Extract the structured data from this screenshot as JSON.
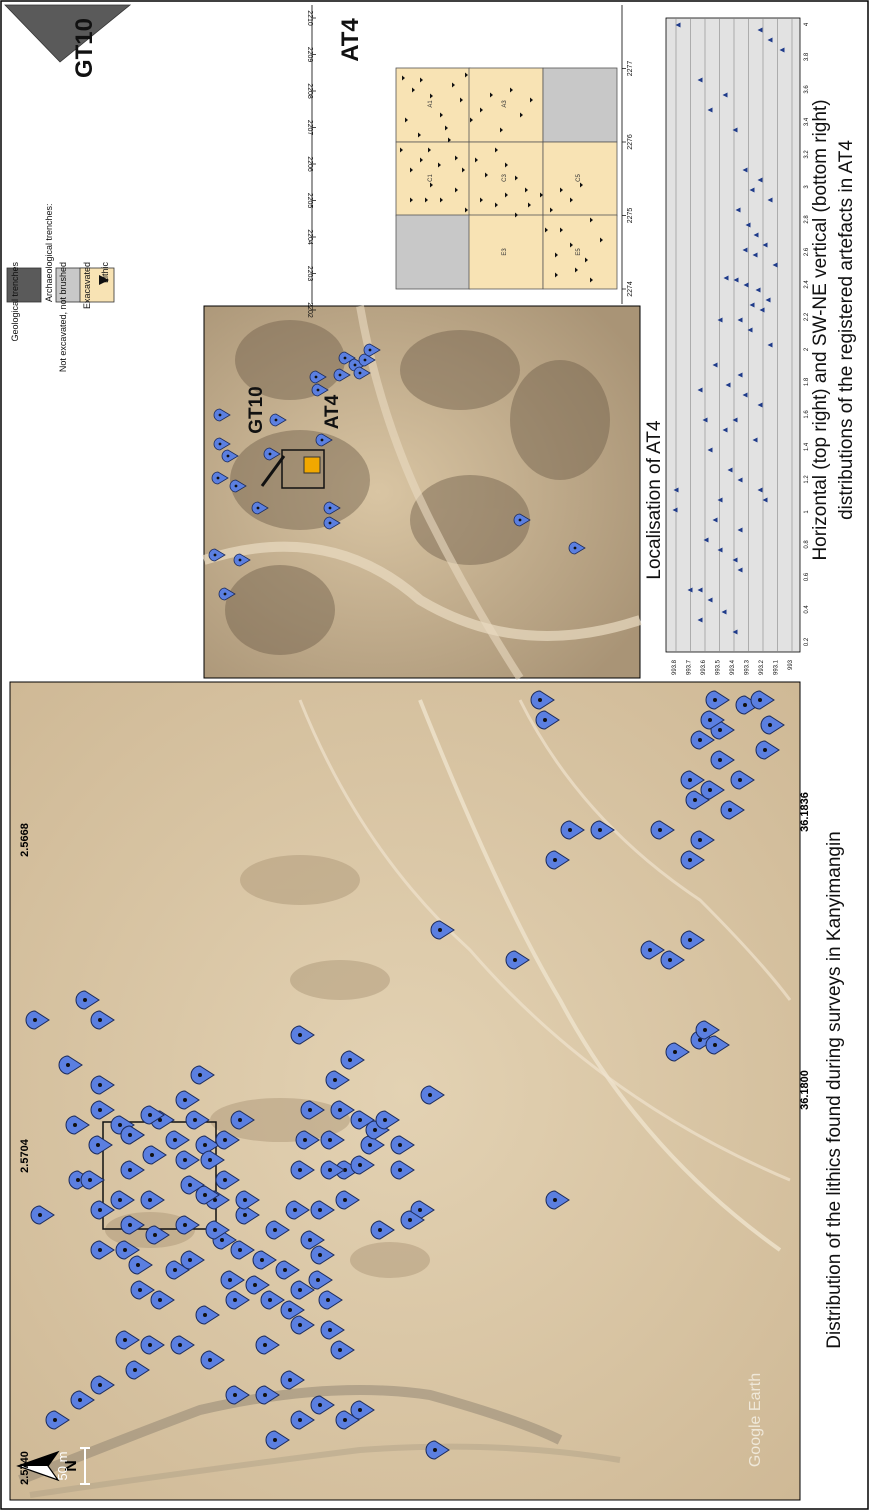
{
  "main_map": {
    "caption": "Distribution of the lithics found during surveys in Kanyimangin",
    "scale_label": "50 m",
    "north_label": "N",
    "watermark": "Google Earth",
    "lat_labels": [
      "2.5740",
      "2.5704",
      "2.5668"
    ],
    "lon_labels": [
      "36.1800",
      "36.1836"
    ]
  },
  "inset_map": {
    "caption": "Localisation of AT4",
    "gt10_label": "GT10",
    "at4_label": "AT4"
  },
  "plan": {
    "title": "AT4",
    "gt10_label": "GT10",
    "legend": {
      "geological": "Geological trenches",
      "archaeological": "Archaeological trenches:",
      "not_excavated": "Not excavated, not brushed",
      "excavated": "Exacavated",
      "lithic": "Lithic"
    },
    "squares": [
      "A1",
      "A3",
      "C1",
      "C3",
      "C5",
      "E3",
      "E5"
    ],
    "y_ticks": [
      "2210",
      "2209",
      "2208",
      "2207",
      "2206",
      "2205",
      "2204",
      "2203",
      "2202"
    ],
    "x_ticks": [
      "2274",
      "2275",
      "2276",
      "2277"
    ]
  },
  "vertical": {
    "caption_line1": "Horizontal (top right) and SW-NE vertical (bottom right)",
    "caption_line2": "distributions of the registered artefacts in AT4",
    "z_ticks": [
      "993.8",
      "993.7",
      "993.6",
      "993.5",
      "993.4",
      "993.3",
      "993.2",
      "993.1",
      "993"
    ],
    "d_ticks": [
      "0.2",
      "0.4",
      "0.6",
      "0.8",
      "1",
      "1.2",
      "1.4",
      "1.6",
      "1.8",
      "2",
      "2.2",
      "2.4",
      "2.6",
      "2.8",
      "3",
      "3.2",
      "3.4",
      "3.6",
      "3.8",
      "4"
    ]
  },
  "colors": {
    "marker": "#5b7fe0",
    "excavated": "#f8e3b4",
    "not_excavated": "#c8c8c8",
    "geological": "#5a5a5a",
    "at4_fill": "#f1a800",
    "terrain": "#ddc9a5"
  }
}
